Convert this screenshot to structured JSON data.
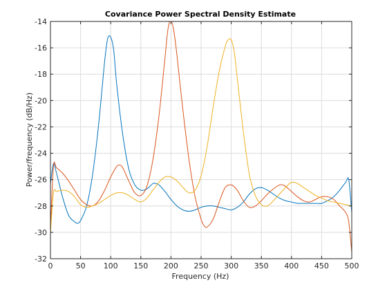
{
  "chart_data": {
    "type": "line",
    "title": "Covariance Power Spectral Density Estimate",
    "xlabel": "Frequency (Hz)",
    "ylabel": "Power/frequency (dB/Hz)",
    "xlim": [
      0,
      500
    ],
    "ylim": [
      -32,
      -14
    ],
    "xticks": [
      0,
      50,
      100,
      150,
      200,
      250,
      300,
      350,
      400,
      450,
      500
    ],
    "yticks": [
      -32,
      -30,
      -28,
      -26,
      -24,
      -22,
      -20,
      -18,
      -16,
      -14
    ],
    "xtick_labels": [
      "0",
      "50",
      "100",
      "150",
      "200",
      "250",
      "300",
      "350",
      "400",
      "450",
      "500"
    ],
    "ytick_labels": [
      "-32",
      "-30",
      "-28",
      "-26",
      "-24",
      "-22",
      "-20",
      "-18",
      "-16",
      "-14"
    ],
    "grid": true,
    "series": [
      {
        "color": "#0072bd",
        "x": [
          0,
          5,
          10,
          20,
          30,
          40,
          45,
          50,
          60,
          70,
          80,
          90,
          95,
          100,
          105,
          110,
          120,
          130,
          140,
          150,
          160,
          170,
          175,
          180,
          190,
          200,
          210,
          220,
          230,
          240,
          250,
          260,
          270,
          280,
          290,
          300,
          310,
          320,
          330,
          340,
          350,
          360,
          370,
          380,
          390,
          400,
          410,
          420,
          430,
          440,
          450,
          460,
          470,
          480,
          490,
          495,
          500
        ],
        "y": [
          -26.3,
          -24.8,
          -25.5,
          -27.3,
          -28.7,
          -29.2,
          -29.3,
          -29.1,
          -28.0,
          -25.6,
          -21.8,
          -17.0,
          -15.3,
          -15.2,
          -16.2,
          -18.8,
          -22.6,
          -25.2,
          -26.4,
          -26.8,
          -26.7,
          -26.3,
          -26.3,
          -26.4,
          -26.9,
          -27.5,
          -28.0,
          -28.3,
          -28.4,
          -28.3,
          -28.1,
          -28.0,
          -28.0,
          -28.1,
          -28.2,
          -28.3,
          -28.1,
          -27.7,
          -27.1,
          -26.7,
          -26.6,
          -26.8,
          -27.1,
          -27.4,
          -27.6,
          -27.7,
          -27.8,
          -27.8,
          -27.8,
          -27.8,
          -27.8,
          -27.6,
          -27.3,
          -26.8,
          -26.2,
          -26.0,
          -28.5
        ]
      },
      {
        "color": "#d95319",
        "x": [
          0,
          5,
          10,
          20,
          30,
          40,
          50,
          60,
          70,
          80,
          90,
          100,
          110,
          115,
          120,
          130,
          140,
          150,
          160,
          170,
          180,
          190,
          195,
          200,
          205,
          210,
          220,
          230,
          240,
          250,
          255,
          260,
          270,
          280,
          290,
          300,
          310,
          320,
          330,
          340,
          350,
          360,
          370,
          380,
          385,
          390,
          400,
          410,
          420,
          430,
          440,
          450,
          460,
          470,
          480,
          490,
          495,
          500
        ],
        "y": [
          -29.8,
          -25.0,
          -25.1,
          -25.5,
          -26.1,
          -26.8,
          -27.5,
          -27.9,
          -28.0,
          -27.6,
          -26.8,
          -25.8,
          -25.0,
          -24.9,
          -25.1,
          -26.1,
          -27.0,
          -27.2,
          -26.5,
          -24.5,
          -21.2,
          -16.8,
          -14.6,
          -13.9,
          -14.8,
          -16.6,
          -20.8,
          -24.5,
          -27.3,
          -29.0,
          -29.5,
          -29.6,
          -29.0,
          -27.7,
          -26.6,
          -26.4,
          -26.8,
          -27.6,
          -28.1,
          -28.0,
          -27.6,
          -27.1,
          -26.7,
          -26.4,
          -26.4,
          -26.5,
          -26.9,
          -27.3,
          -27.6,
          -27.7,
          -27.5,
          -27.3,
          -27.3,
          -27.5,
          -28.0,
          -28.5,
          -29.2,
          -31.5
        ]
      },
      {
        "color": "#edb120",
        "x": [
          0,
          5,
          10,
          20,
          30,
          40,
          50,
          60,
          70,
          80,
          90,
          100,
          110,
          120,
          130,
          140,
          150,
          160,
          170,
          180,
          190,
          200,
          210,
          220,
          230,
          240,
          250,
          260,
          270,
          280,
          290,
          295,
          300,
          305,
          310,
          320,
          330,
          340,
          350,
          360,
          370,
          380,
          390,
          400,
          410,
          420,
          430,
          440,
          450,
          460,
          470,
          480,
          490,
          500
        ],
        "y": [
          -30.1,
          -27.0,
          -26.9,
          -26.8,
          -26.9,
          -27.3,
          -27.9,
          -28.1,
          -28.0,
          -27.8,
          -27.5,
          -27.2,
          -27.0,
          -27.0,
          -27.2,
          -27.5,
          -27.7,
          -27.4,
          -26.8,
          -26.2,
          -25.8,
          -25.8,
          -26.1,
          -26.6,
          -27.0,
          -26.8,
          -25.7,
          -23.5,
          -20.5,
          -17.8,
          -15.9,
          -15.4,
          -15.4,
          -16.3,
          -18.3,
          -22.3,
          -25.6,
          -27.2,
          -27.9,
          -28.0,
          -27.6,
          -27.1,
          -26.6,
          -26.2,
          -26.3,
          -26.6,
          -26.9,
          -27.2,
          -27.4,
          -27.6,
          -27.7,
          -27.8,
          -27.9,
          -28.0
        ]
      }
    ]
  }
}
